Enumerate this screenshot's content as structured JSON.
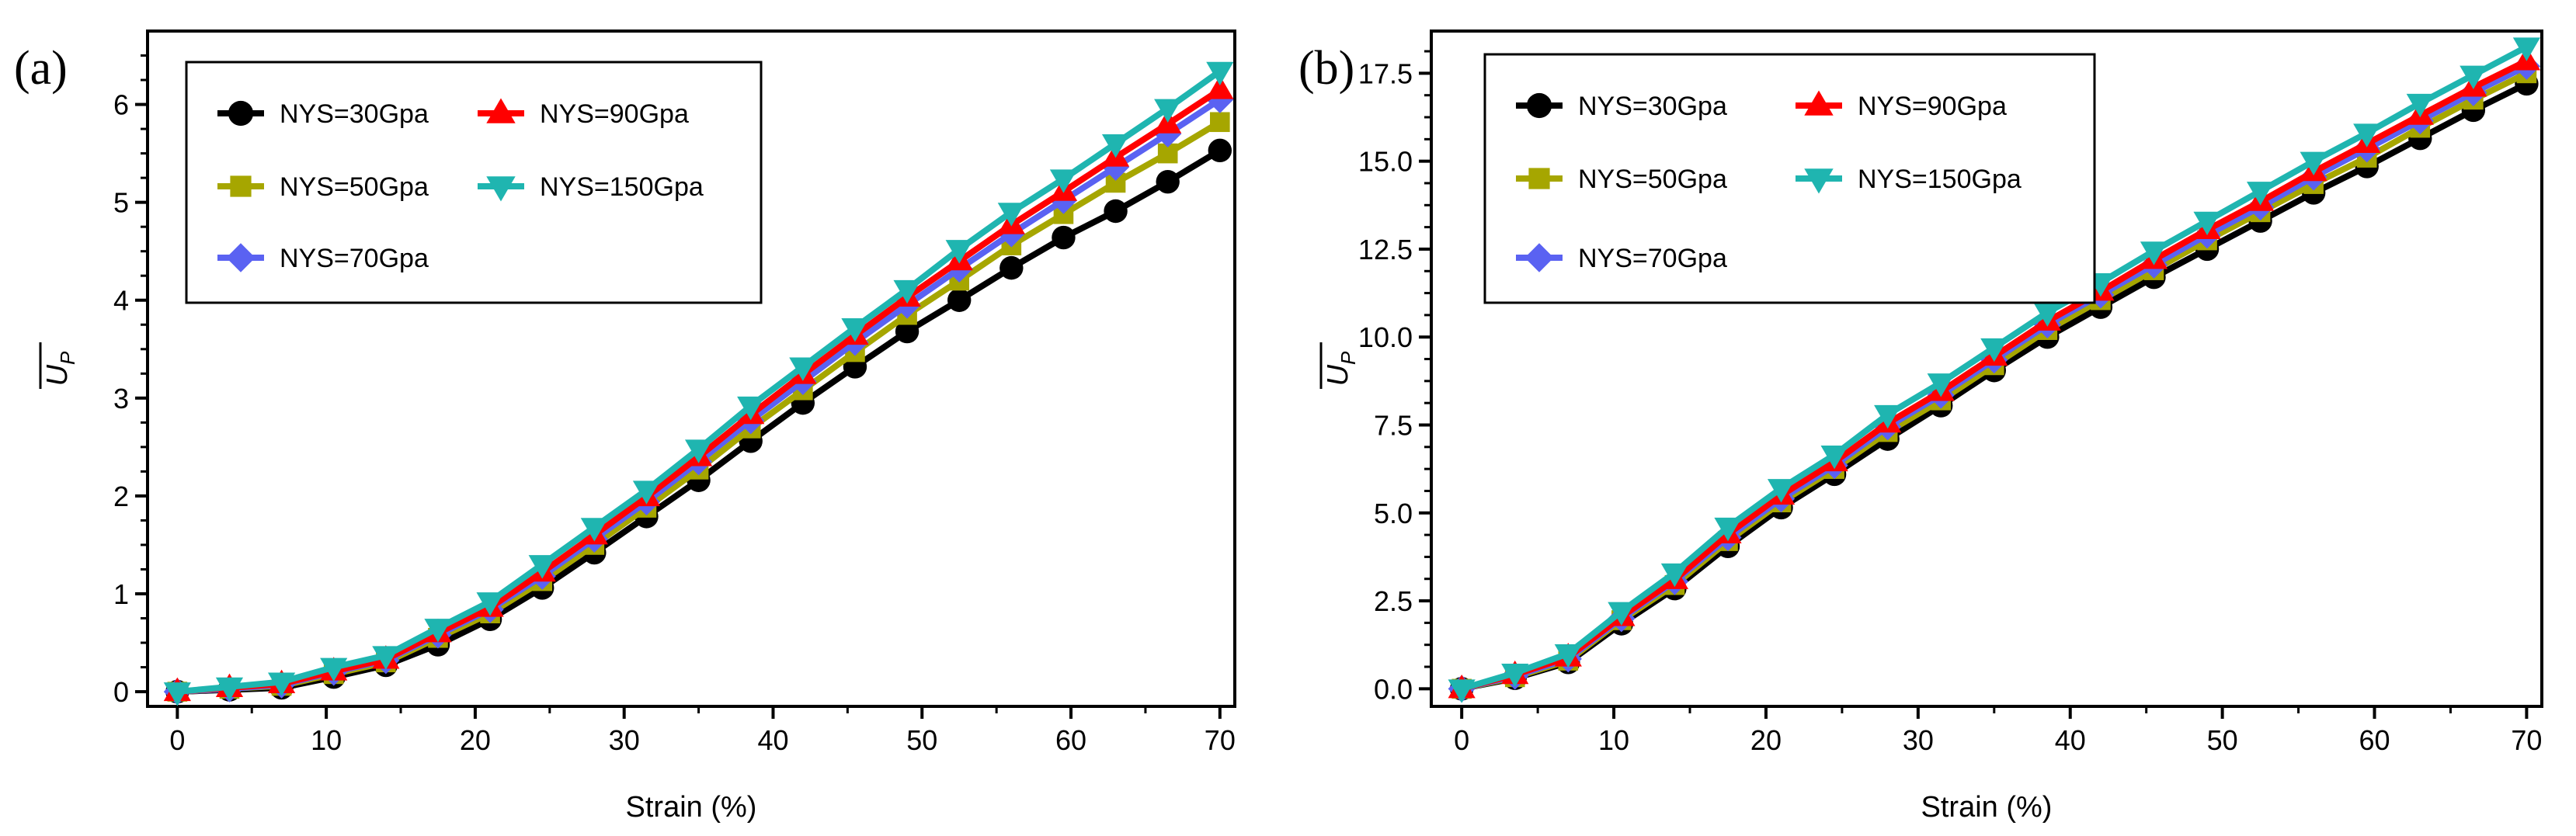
{
  "chart_data": [
    {
      "panel": "(a)",
      "type": "line",
      "xlabel": "Strain (%)",
      "ylabel": "U",
      "ylabel_sub": "P",
      "xlim": [
        -2,
        71
      ],
      "ylim": [
        -0.15,
        6.75
      ],
      "xticks": [
        0,
        10,
        20,
        30,
        40,
        50,
        60,
        70
      ],
      "yticks": [
        0,
        1,
        2,
        3,
        4,
        5,
        6
      ],
      "ytick_labels": [
        "0",
        "1",
        "2",
        "3",
        "4",
        "5",
        "6"
      ],
      "legend_position": "top-left",
      "x": [
        0,
        3.5,
        7,
        10.5,
        14,
        17.5,
        21,
        24.5,
        28,
        31.5,
        35,
        38.5,
        42,
        45.5,
        49,
        52.5,
        56,
        59.5,
        63,
        66.5,
        70
      ],
      "series": [
        {
          "name": "NYS=30Gpa",
          "color": "#000000",
          "marker": "circle",
          "values": [
            0.0,
            0.02,
            0.04,
            0.15,
            0.27,
            0.48,
            0.74,
            1.06,
            1.42,
            1.79,
            2.16,
            2.56,
            2.95,
            3.32,
            3.68,
            4.0,
            4.33,
            4.64,
            4.91,
            5.21,
            5.53
          ]
        },
        {
          "name": "NYS=50Gpa",
          "color": "#a6a600",
          "marker": "square",
          "values": [
            0.0,
            0.03,
            0.06,
            0.18,
            0.3,
            0.55,
            0.8,
            1.13,
            1.5,
            1.88,
            2.27,
            2.69,
            3.08,
            3.47,
            3.85,
            4.2,
            4.56,
            4.88,
            5.2,
            5.5,
            5.82
          ]
        },
        {
          "name": "NYS=70Gpa",
          "color": "#5a62f2",
          "marker": "diamond",
          "values": [
            0.0,
            0.03,
            0.07,
            0.2,
            0.32,
            0.58,
            0.84,
            1.18,
            1.56,
            1.94,
            2.35,
            2.77,
            3.17,
            3.57,
            3.95,
            4.32,
            4.68,
            5.02,
            5.36,
            5.7,
            6.05
          ]
        },
        {
          "name": "NYS=90Gpa",
          "color": "#ff0000",
          "marker": "triangle-up",
          "values": [
            0.0,
            0.04,
            0.08,
            0.21,
            0.33,
            0.6,
            0.86,
            1.22,
            1.6,
            1.99,
            2.4,
            2.83,
            3.24,
            3.64,
            4.03,
            4.4,
            4.77,
            5.11,
            5.46,
            5.8,
            6.15
          ]
        },
        {
          "name": "NYS=150Gpa",
          "color": "#1fb5b0",
          "marker": "triangle-down",
          "values": [
            0.0,
            0.05,
            0.1,
            0.25,
            0.37,
            0.65,
            0.92,
            1.3,
            1.68,
            2.06,
            2.48,
            2.92,
            3.32,
            3.72,
            4.11,
            4.52,
            4.9,
            5.24,
            5.6,
            5.96,
            6.34
          ]
        }
      ]
    },
    {
      "panel": "(b)",
      "type": "line",
      "xlabel": "Strain (%)",
      "ylabel": "U",
      "ylabel_sub": "P",
      "xlim": [
        -2,
        71
      ],
      "ylim": [
        -0.5,
        18.7
      ],
      "xticks": [
        0,
        10,
        20,
        30,
        40,
        50,
        60,
        70
      ],
      "yticks": [
        0,
        2.5,
        5,
        7.5,
        10,
        12.5,
        15,
        17.5
      ],
      "ytick_labels": [
        "0.0",
        "2.5",
        "5.0",
        "7.5",
        "10.0",
        "12.5",
        "15.0",
        "17.5"
      ],
      "legend_position": "top-left",
      "x": [
        0,
        3.5,
        7,
        10.5,
        14,
        17.5,
        21,
        24.5,
        28,
        31.5,
        35,
        38.5,
        42,
        45.5,
        49,
        52.5,
        56,
        59.5,
        63,
        66.5,
        70
      ],
      "series": [
        {
          "name": "NYS=30Gpa",
          "color": "#000000",
          "marker": "circle",
          "values": [
            0.0,
            0.3,
            0.75,
            1.85,
            2.85,
            4.05,
            5.15,
            6.1,
            7.1,
            8.05,
            9.05,
            10.0,
            10.85,
            11.7,
            12.5,
            13.3,
            14.1,
            14.85,
            15.65,
            16.45,
            17.2
          ]
        },
        {
          "name": "NYS=50Gpa",
          "color": "#a6a600",
          "marker": "square",
          "values": [
            0.0,
            0.33,
            0.8,
            1.95,
            2.95,
            4.2,
            5.3,
            6.25,
            7.3,
            8.2,
            9.2,
            10.2,
            11.05,
            11.9,
            12.75,
            13.55,
            14.35,
            15.1,
            15.95,
            16.75,
            17.5
          ]
        },
        {
          "name": "NYS=70Gpa",
          "color": "#5a62f2",
          "marker": "diamond",
          "values": [
            0.0,
            0.36,
            0.85,
            2.0,
            3.05,
            4.3,
            5.4,
            6.35,
            7.45,
            8.35,
            9.35,
            10.35,
            11.2,
            12.05,
            12.9,
            13.7,
            14.55,
            15.35,
            16.15,
            16.95,
            17.7
          ]
        },
        {
          "name": "NYS=90Gpa",
          "color": "#ff0000",
          "marker": "triangle-up",
          "values": [
            0.0,
            0.4,
            0.9,
            2.05,
            3.1,
            4.4,
            5.5,
            6.45,
            7.55,
            8.45,
            9.45,
            10.45,
            11.3,
            12.2,
            13.05,
            13.85,
            14.7,
            15.5,
            16.3,
            17.1,
            17.85
          ]
        },
        {
          "name": "NYS=150Gpa",
          "color": "#1fb5b0",
          "marker": "triangle-down",
          "values": [
            0.0,
            0.45,
            1.0,
            2.2,
            3.3,
            4.6,
            5.7,
            6.65,
            7.8,
            8.7,
            9.7,
            10.7,
            11.55,
            12.45,
            13.3,
            14.15,
            15.0,
            15.8,
            16.65,
            17.45,
            18.25
          ]
        }
      ]
    }
  ]
}
